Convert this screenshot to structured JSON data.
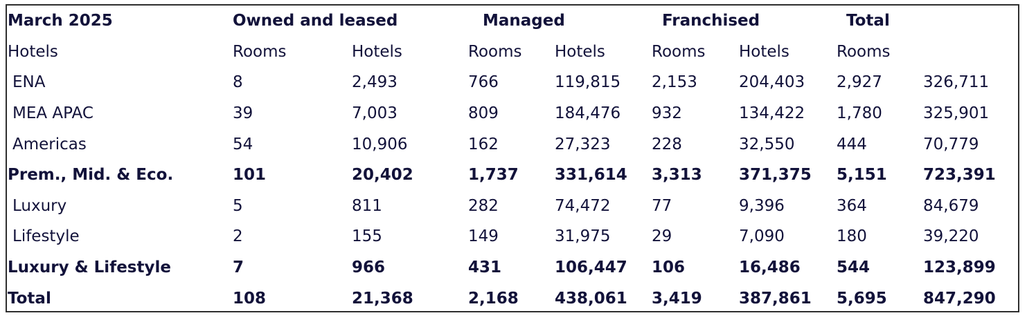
{
  "table": {
    "header_row": {
      "period": "March 2025",
      "groups": [
        "Owned and leased",
        "Managed",
        "Franchised",
        "Total"
      ]
    },
    "subheader_row": [
      "Hotels",
      "Rooms",
      "Hotels",
      "Rooms",
      "Hotels",
      "Rooms",
      "Hotels",
      "Rooms"
    ],
    "rows": [
      {
        "label": "ENA",
        "bold": false,
        "indent": true,
        "values": [
          "8",
          "2,493",
          "766",
          "119,815",
          "2,153",
          "204,403",
          "2,927",
          "326,711"
        ]
      },
      {
        "label": "MEA APAC",
        "bold": false,
        "indent": true,
        "values": [
          "39",
          "7,003",
          "809",
          "184,476",
          "932",
          "134,422",
          "1,780",
          "325,901"
        ]
      },
      {
        "label": "Americas",
        "bold": false,
        "indent": true,
        "values": [
          "54",
          "10,906",
          "162",
          "27,323",
          "228",
          "32,550",
          "444",
          "70,779"
        ]
      },
      {
        "label": "Prem., Mid. & Eco.",
        "bold": true,
        "indent": false,
        "values": [
          "101",
          "20,402",
          "1,737",
          "331,614",
          "3,313",
          "371,375",
          "5,151",
          "723,391"
        ]
      },
      {
        "label": "Luxury",
        "bold": false,
        "indent": true,
        "values": [
          "5",
          "811",
          "282",
          "74,472",
          "77",
          "9,396",
          "364",
          "84,679"
        ]
      },
      {
        "label": "Lifestyle",
        "bold": false,
        "indent": true,
        "values": [
          "2",
          "155",
          "149",
          "31,975",
          "29",
          "7,090",
          "180",
          "39,220"
        ]
      },
      {
        "label": "Luxury & Lifestyle",
        "bold": true,
        "indent": false,
        "values": [
          "7",
          "966",
          "431",
          "106,447",
          "106",
          "16,486",
          "544",
          "123,899"
        ]
      },
      {
        "label": "Total",
        "bold": true,
        "indent": false,
        "values": [
          "108",
          "21,368",
          "2,168",
          "438,061",
          "3,419",
          "387,861",
          "5,695",
          "847,290"
        ]
      }
    ]
  }
}
